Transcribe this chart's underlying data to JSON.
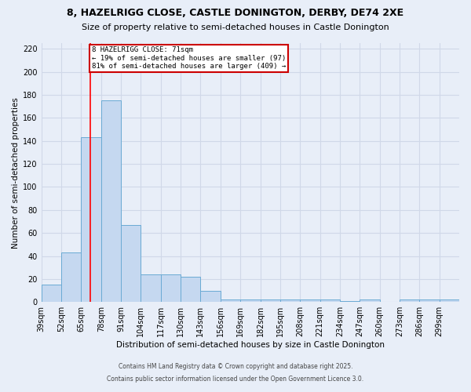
{
  "title": "8, HAZELRIGG CLOSE, CASTLE DONINGTON, DERBY, DE74 2XE",
  "subtitle": "Size of property relative to semi-detached houses in Castle Donington",
  "xlabel": "Distribution of semi-detached houses by size in Castle Donington",
  "ylabel": "Number of semi-detached properties",
  "footnote1": "Contains HM Land Registry data © Crown copyright and database right 2025.",
  "footnote2": "Contains public sector information licensed under the Open Government Licence 3.0.",
  "property_label": "8 HAZELRIGG CLOSE: 71sqm",
  "pct_smaller": 19,
  "pct_larger": 81,
  "n_smaller": 97,
  "n_larger": 409,
  "bin_labels": [
    "39sqm",
    "52sqm",
    "65sqm",
    "78sqm",
    "91sqm",
    "104sqm",
    "117sqm",
    "130sqm",
    "143sqm",
    "156sqm",
    "169sqm",
    "182sqm",
    "195sqm",
    "208sqm",
    "221sqm",
    "234sqm",
    "247sqm",
    "260sqm",
    "273sqm",
    "286sqm",
    "299sqm"
  ],
  "bin_edges": [
    39,
    52,
    65,
    78,
    91,
    104,
    117,
    130,
    143,
    156,
    169,
    182,
    195,
    208,
    221,
    234,
    247,
    260,
    273,
    286,
    299,
    312
  ],
  "counts": [
    15,
    43,
    143,
    175,
    67,
    24,
    24,
    22,
    10,
    2,
    2,
    2,
    2,
    2,
    2,
    1,
    2,
    0,
    2,
    2,
    2
  ],
  "bar_color": "#c5d8f0",
  "bar_edge_color": "#6aaad4",
  "red_line_x": 71,
  "ylim": [
    0,
    225
  ],
  "yticks": [
    0,
    20,
    40,
    60,
    80,
    100,
    120,
    140,
    160,
    180,
    200,
    220
  ],
  "background_color": "#e8eef8",
  "grid_color": "#d0d8e8",
  "title_fontsize": 9,
  "subtitle_fontsize": 8,
  "axis_label_fontsize": 7.5,
  "tick_fontsize": 7
}
